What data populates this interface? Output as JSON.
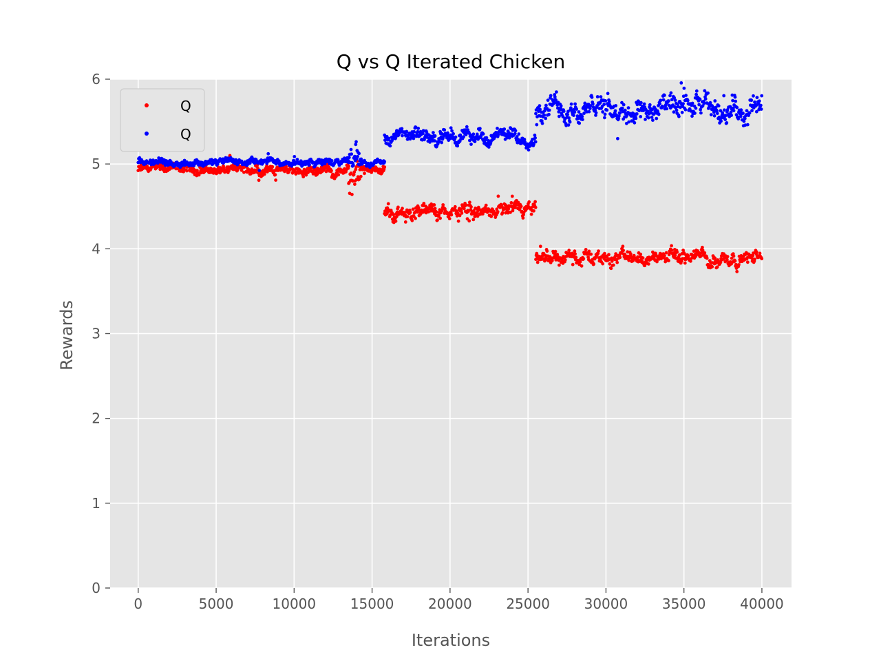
{
  "chart_data": {
    "type": "scatter",
    "title": "Q vs Q Iterated Chicken",
    "xlabel": "Iterations",
    "ylabel": "Rewards",
    "xlim": [
      -1800,
      41900
    ],
    "ylim": [
      0,
      6
    ],
    "xticks": [
      "0",
      "5000",
      "10000",
      "15000",
      "20000",
      "25000",
      "30000",
      "35000",
      "40000"
    ],
    "yticks": [
      "0",
      "1",
      "2",
      "3",
      "4",
      "5",
      "6"
    ],
    "grid": true,
    "legend_position": "top-left",
    "series": [
      {
        "name": "Q",
        "color": "#ff0000",
        "segments": [
          {
            "x_start": 0,
            "x_end": 13500,
            "level": 4.93,
            "spread": 0.07,
            "dip": 0.12
          },
          {
            "x_start": 13500,
            "x_end": 14300,
            "level": 4.75,
            "spread": 0.25,
            "dip": 0.35
          },
          {
            "x_start": 14300,
            "x_end": 15800,
            "level": 4.93,
            "spread": 0.05,
            "dip": 0.06
          },
          {
            "x_start": 15800,
            "x_end": 25500,
            "level": 4.43,
            "spread": 0.1,
            "dip": 0.15
          },
          {
            "x_start": 25500,
            "x_end": 40000,
            "level": 3.9,
            "spread": 0.1,
            "dip": 0.15
          }
        ]
      },
      {
        "name": "Q",
        "color": "#0000ff",
        "segments": [
          {
            "x_start": 0,
            "x_end": 13500,
            "level": 5.02,
            "spread": 0.05,
            "dip": 0.1
          },
          {
            "x_start": 13500,
            "x_end": 14300,
            "level": 5.1,
            "spread": 0.18,
            "dip": 0.1
          },
          {
            "x_start": 14300,
            "x_end": 15800,
            "level": 5.02,
            "spread": 0.04,
            "dip": 0.05
          },
          {
            "x_start": 15800,
            "x_end": 25500,
            "level": 5.32,
            "spread": 0.1,
            "dip": 0.2
          },
          {
            "x_start": 25500,
            "x_end": 40000,
            "level": 5.65,
            "spread": 0.17,
            "dip": 0.3
          }
        ]
      }
    ]
  }
}
